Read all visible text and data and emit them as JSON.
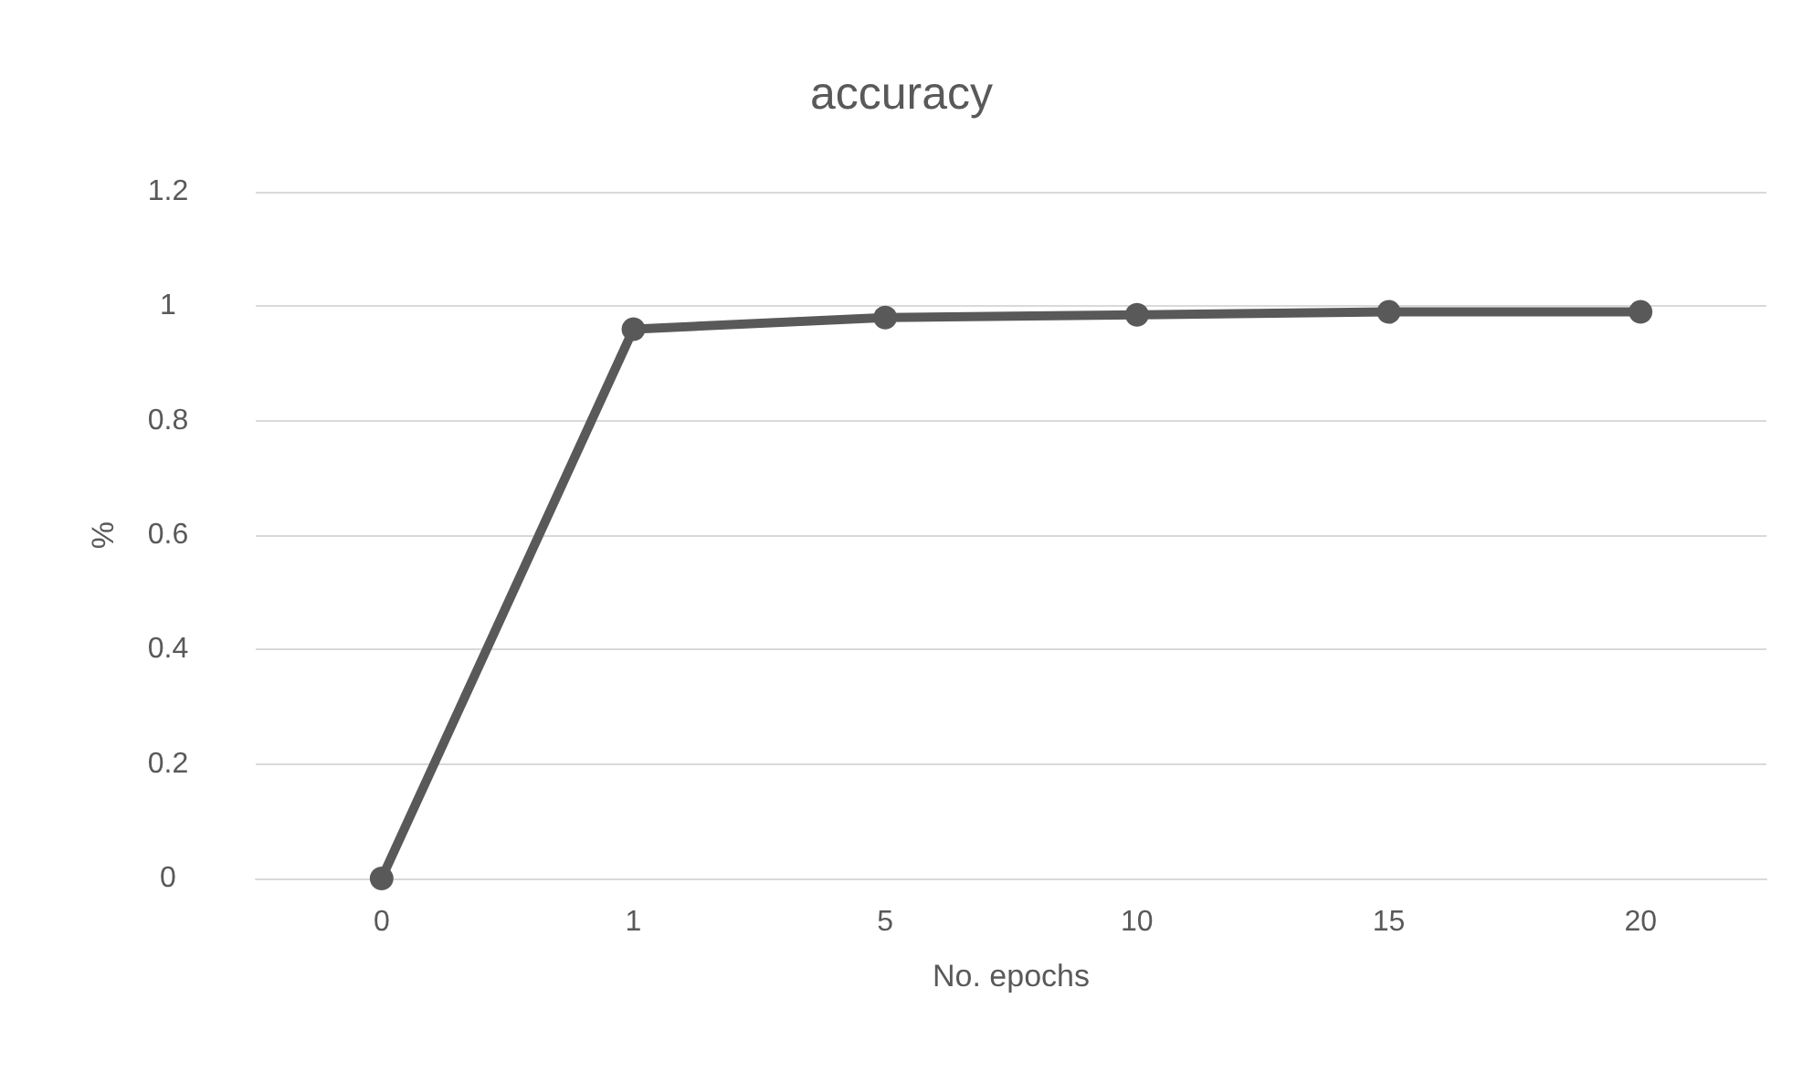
{
  "chart_data": {
    "type": "line",
    "title": "accuracy",
    "xlabel": "No. epochs",
    "ylabel": "%",
    "categories": [
      "0",
      "1",
      "5",
      "10",
      "15",
      "20"
    ],
    "series": [
      {
        "color": "#595959",
        "values": [
          0,
          0.96,
          0.98,
          0.985,
          0.99,
          0.99
        ]
      }
    ],
    "ylim": [
      0,
      1.2
    ],
    "yticks": [
      0,
      0.2,
      0.4,
      0.6,
      0.8,
      1,
      1.2
    ],
    "grid": "y",
    "marker": "circle",
    "line_style": "solid"
  }
}
